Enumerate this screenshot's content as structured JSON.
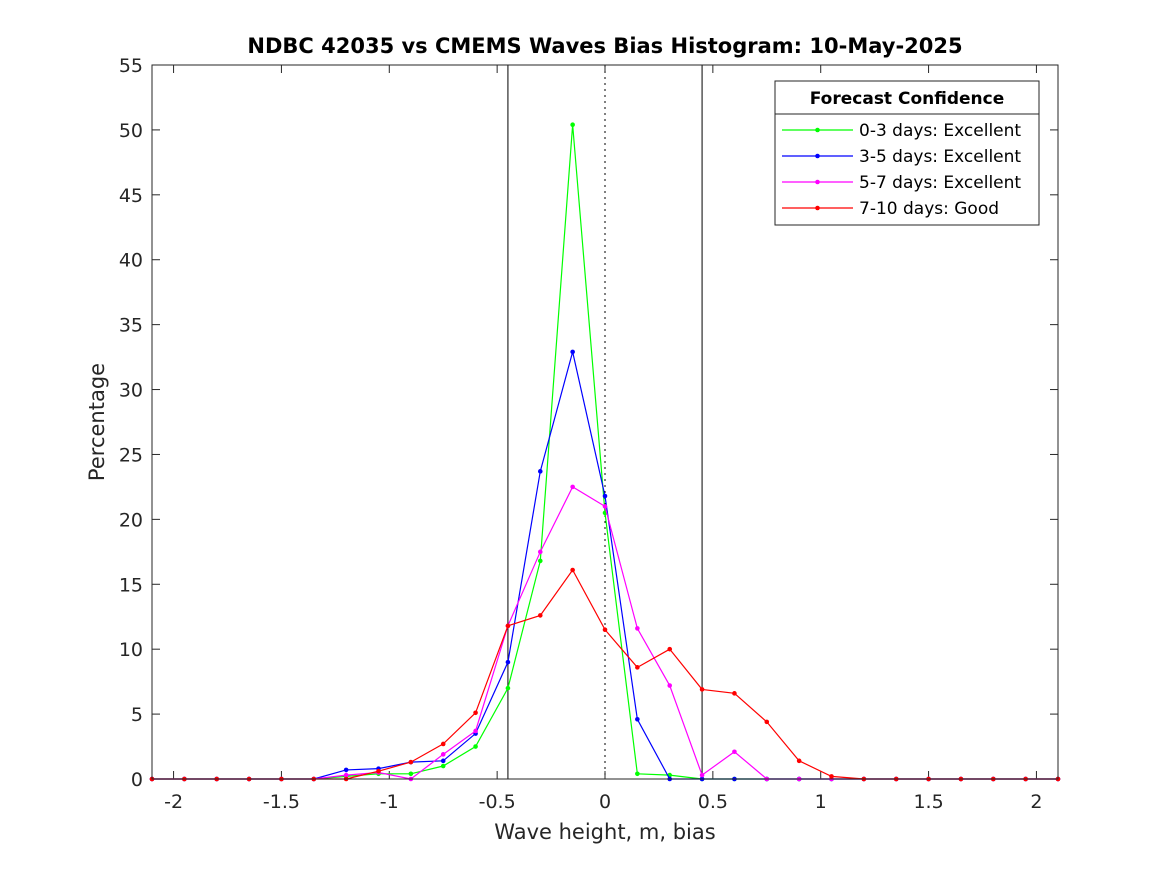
{
  "chart_data": {
    "type": "line",
    "title": "NDBC 42035 vs CMEMS Waves Bias Histogram: 10-May-2025",
    "xlabel": "Wave height, m, bias",
    "ylabel": "Percentage",
    "xlim": [
      -2.1,
      2.1
    ],
    "ylim": [
      0,
      55
    ],
    "xticks": [
      -2,
      -1.5,
      -1,
      -0.5,
      0,
      0.5,
      1,
      1.5,
      2
    ],
    "xtick_labels": [
      "-2",
      "-1.5",
      "-1",
      "-0.5",
      "0",
      "0.5",
      "1",
      "1.5",
      "2"
    ],
    "yticks": [
      0,
      5,
      10,
      15,
      20,
      25,
      30,
      35,
      40,
      45,
      50,
      55
    ],
    "ytick_labels": [
      "0",
      "5",
      "10",
      "15",
      "20",
      "25",
      "30",
      "35",
      "40",
      "45",
      "50",
      "55"
    ],
    "reference_lines": [
      {
        "x": -0.45,
        "style": "solid"
      },
      {
        "x": 0,
        "style": "dotted"
      },
      {
        "x": 0.45,
        "style": "solid"
      }
    ],
    "legend": {
      "title": "Forecast Confidence",
      "placement": "top-right"
    },
    "x": [
      -2.1,
      -1.95,
      -1.8,
      -1.65,
      -1.5,
      -1.35,
      -1.2,
      -1.05,
      -0.9,
      -0.75,
      -0.6,
      -0.45,
      -0.3,
      -0.15,
      0,
      0.15,
      0.3,
      0.45,
      0.6,
      0.75,
      0.9,
      1.05,
      1.2,
      1.35,
      1.5,
      1.65,
      1.8,
      1.95,
      2.1
    ],
    "series": [
      {
        "name": "0-3 days: Excellent",
        "color": "#00ff00",
        "values": [
          0,
          0,
          0,
          0,
          0,
          0,
          0.2,
          0.4,
          0.4,
          1.0,
          2.5,
          7.0,
          16.8,
          50.4,
          20.5,
          0.4,
          0.3,
          0,
          0,
          0,
          0,
          0,
          0,
          0,
          0,
          0,
          0,
          0,
          0
        ]
      },
      {
        "name": "3-5 days: Excellent",
        "color": "#0000ff",
        "values": [
          0,
          0,
          0,
          0,
          0,
          0,
          0.7,
          0.8,
          1.3,
          1.4,
          3.5,
          9.0,
          23.7,
          32.9,
          21.8,
          4.6,
          0,
          0,
          0,
          0,
          0,
          0,
          0,
          0,
          0,
          0,
          0,
          0,
          0
        ]
      },
      {
        "name": "5-7 days: Excellent",
        "color": "#ff00ff",
        "values": [
          0,
          0,
          0,
          0,
          0,
          0,
          0.3,
          0.5,
          0,
          1.9,
          3.7,
          11.8,
          17.5,
          22.5,
          21.0,
          11.6,
          7.2,
          0.3,
          2.1,
          0,
          0,
          0,
          0,
          0,
          0,
          0,
          0,
          0,
          0
        ]
      },
      {
        "name": "7-10 days: Good",
        "color": "#ff0000",
        "values": [
          0,
          0,
          0,
          0,
          0,
          0,
          0,
          0.6,
          1.3,
          2.7,
          5.1,
          11.8,
          12.6,
          16.1,
          11.5,
          8.6,
          10.0,
          6.9,
          6.6,
          4.4,
          1.4,
          0.2,
          0,
          0,
          0,
          0,
          0,
          0,
          0
        ]
      }
    ]
  }
}
